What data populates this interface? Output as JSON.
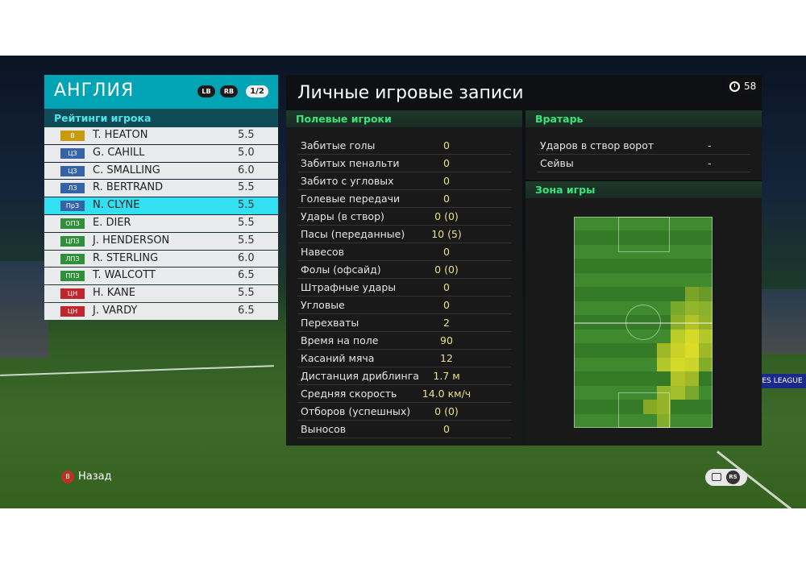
{
  "team": {
    "name": "АНГЛИЯ",
    "lb": "LB",
    "rb": "RB",
    "page": "1/2",
    "subtitle": "Рейтинги игрока"
  },
  "colors": {
    "gk": "#c89a10",
    "def": "#3563a8",
    "mid": "#2f8f3a",
    "fwd": "#c0272d",
    "selected": "#33e0f2",
    "accent": "#00a4b5"
  },
  "players": [
    {
      "pos": "В",
      "name": "T. HEATON",
      "rating": "5.5",
      "role": "gk"
    },
    {
      "pos": "ЦЗ",
      "name": "G. CAHILL",
      "rating": "5.0",
      "role": "def"
    },
    {
      "pos": "ЦЗ",
      "name": "C. SMALLING",
      "rating": "6.0",
      "role": "def"
    },
    {
      "pos": "ЛЗ",
      "name": "R. BERTRAND",
      "rating": "5.5",
      "role": "def"
    },
    {
      "pos": "ПрЗ",
      "name": "N. CLYNE",
      "rating": "5.5",
      "role": "def",
      "selected": true
    },
    {
      "pos": "ОПЗ",
      "name": "E. DIER",
      "rating": "5.5",
      "role": "mid"
    },
    {
      "pos": "ЦПЗ",
      "name": "J. HENDERSON",
      "rating": "5.5",
      "role": "mid"
    },
    {
      "pos": "ЛПЗ",
      "name": "R. STERLING",
      "rating": "6.0",
      "role": "mid"
    },
    {
      "pos": "ППЗ",
      "name": "T. WALCOTT",
      "rating": "6.5",
      "role": "mid"
    },
    {
      "pos": "ЦН",
      "name": "H. KANE",
      "rating": "5.5",
      "role": "fwd"
    },
    {
      "pos": "ЦН",
      "name": "J. VARDY",
      "rating": "6.5",
      "role": "fwd"
    }
  ],
  "records": {
    "title": "Личные игровые записи",
    "timer": "58",
    "field_header": "Полевые игроки",
    "stats": [
      {
        "label": "Забитые голы",
        "value": "0"
      },
      {
        "label": "Забитых пенальти",
        "value": "0"
      },
      {
        "label": "Забито с угловых",
        "value": "0"
      },
      {
        "label": "Голевые передачи",
        "value": "0"
      },
      {
        "label": "Удары (в створ)",
        "value": "0 (0)"
      },
      {
        "label": "Пасы (переданные)",
        "value": "10 (5)"
      },
      {
        "label": "Навесов",
        "value": "0"
      },
      {
        "label": "Фолы (офсайд)",
        "value": "0 (0)"
      },
      {
        "label": "Штрафные удары",
        "value": "0"
      },
      {
        "label": "Угловые",
        "value": "0"
      },
      {
        "label": "Перехваты",
        "value": "2"
      },
      {
        "label": "Время на поле",
        "value": "90"
      },
      {
        "label": "Касаний мяча",
        "value": "12"
      },
      {
        "label": "Дистанция дриблинга",
        "value": "1.7 м"
      },
      {
        "label": "Средняя скорость",
        "value": "14.0 км/ч"
      },
      {
        "label": "Отборов (успешных)",
        "value": "0 (0)"
      },
      {
        "label": "Выносов",
        "value": "0"
      }
    ],
    "gk_header": "Вратарь",
    "gk_stats": [
      {
        "label": "Ударов в створ ворот",
        "value": "-"
      },
      {
        "label": "Сейвы",
        "value": "-"
      }
    ],
    "zone_header": "Зона игры"
  },
  "footer": {
    "back_button": "B",
    "back_label": "Назад",
    "rs_label": "RS"
  },
  "scene": {
    "ads_text": "PES LEAGUE"
  }
}
